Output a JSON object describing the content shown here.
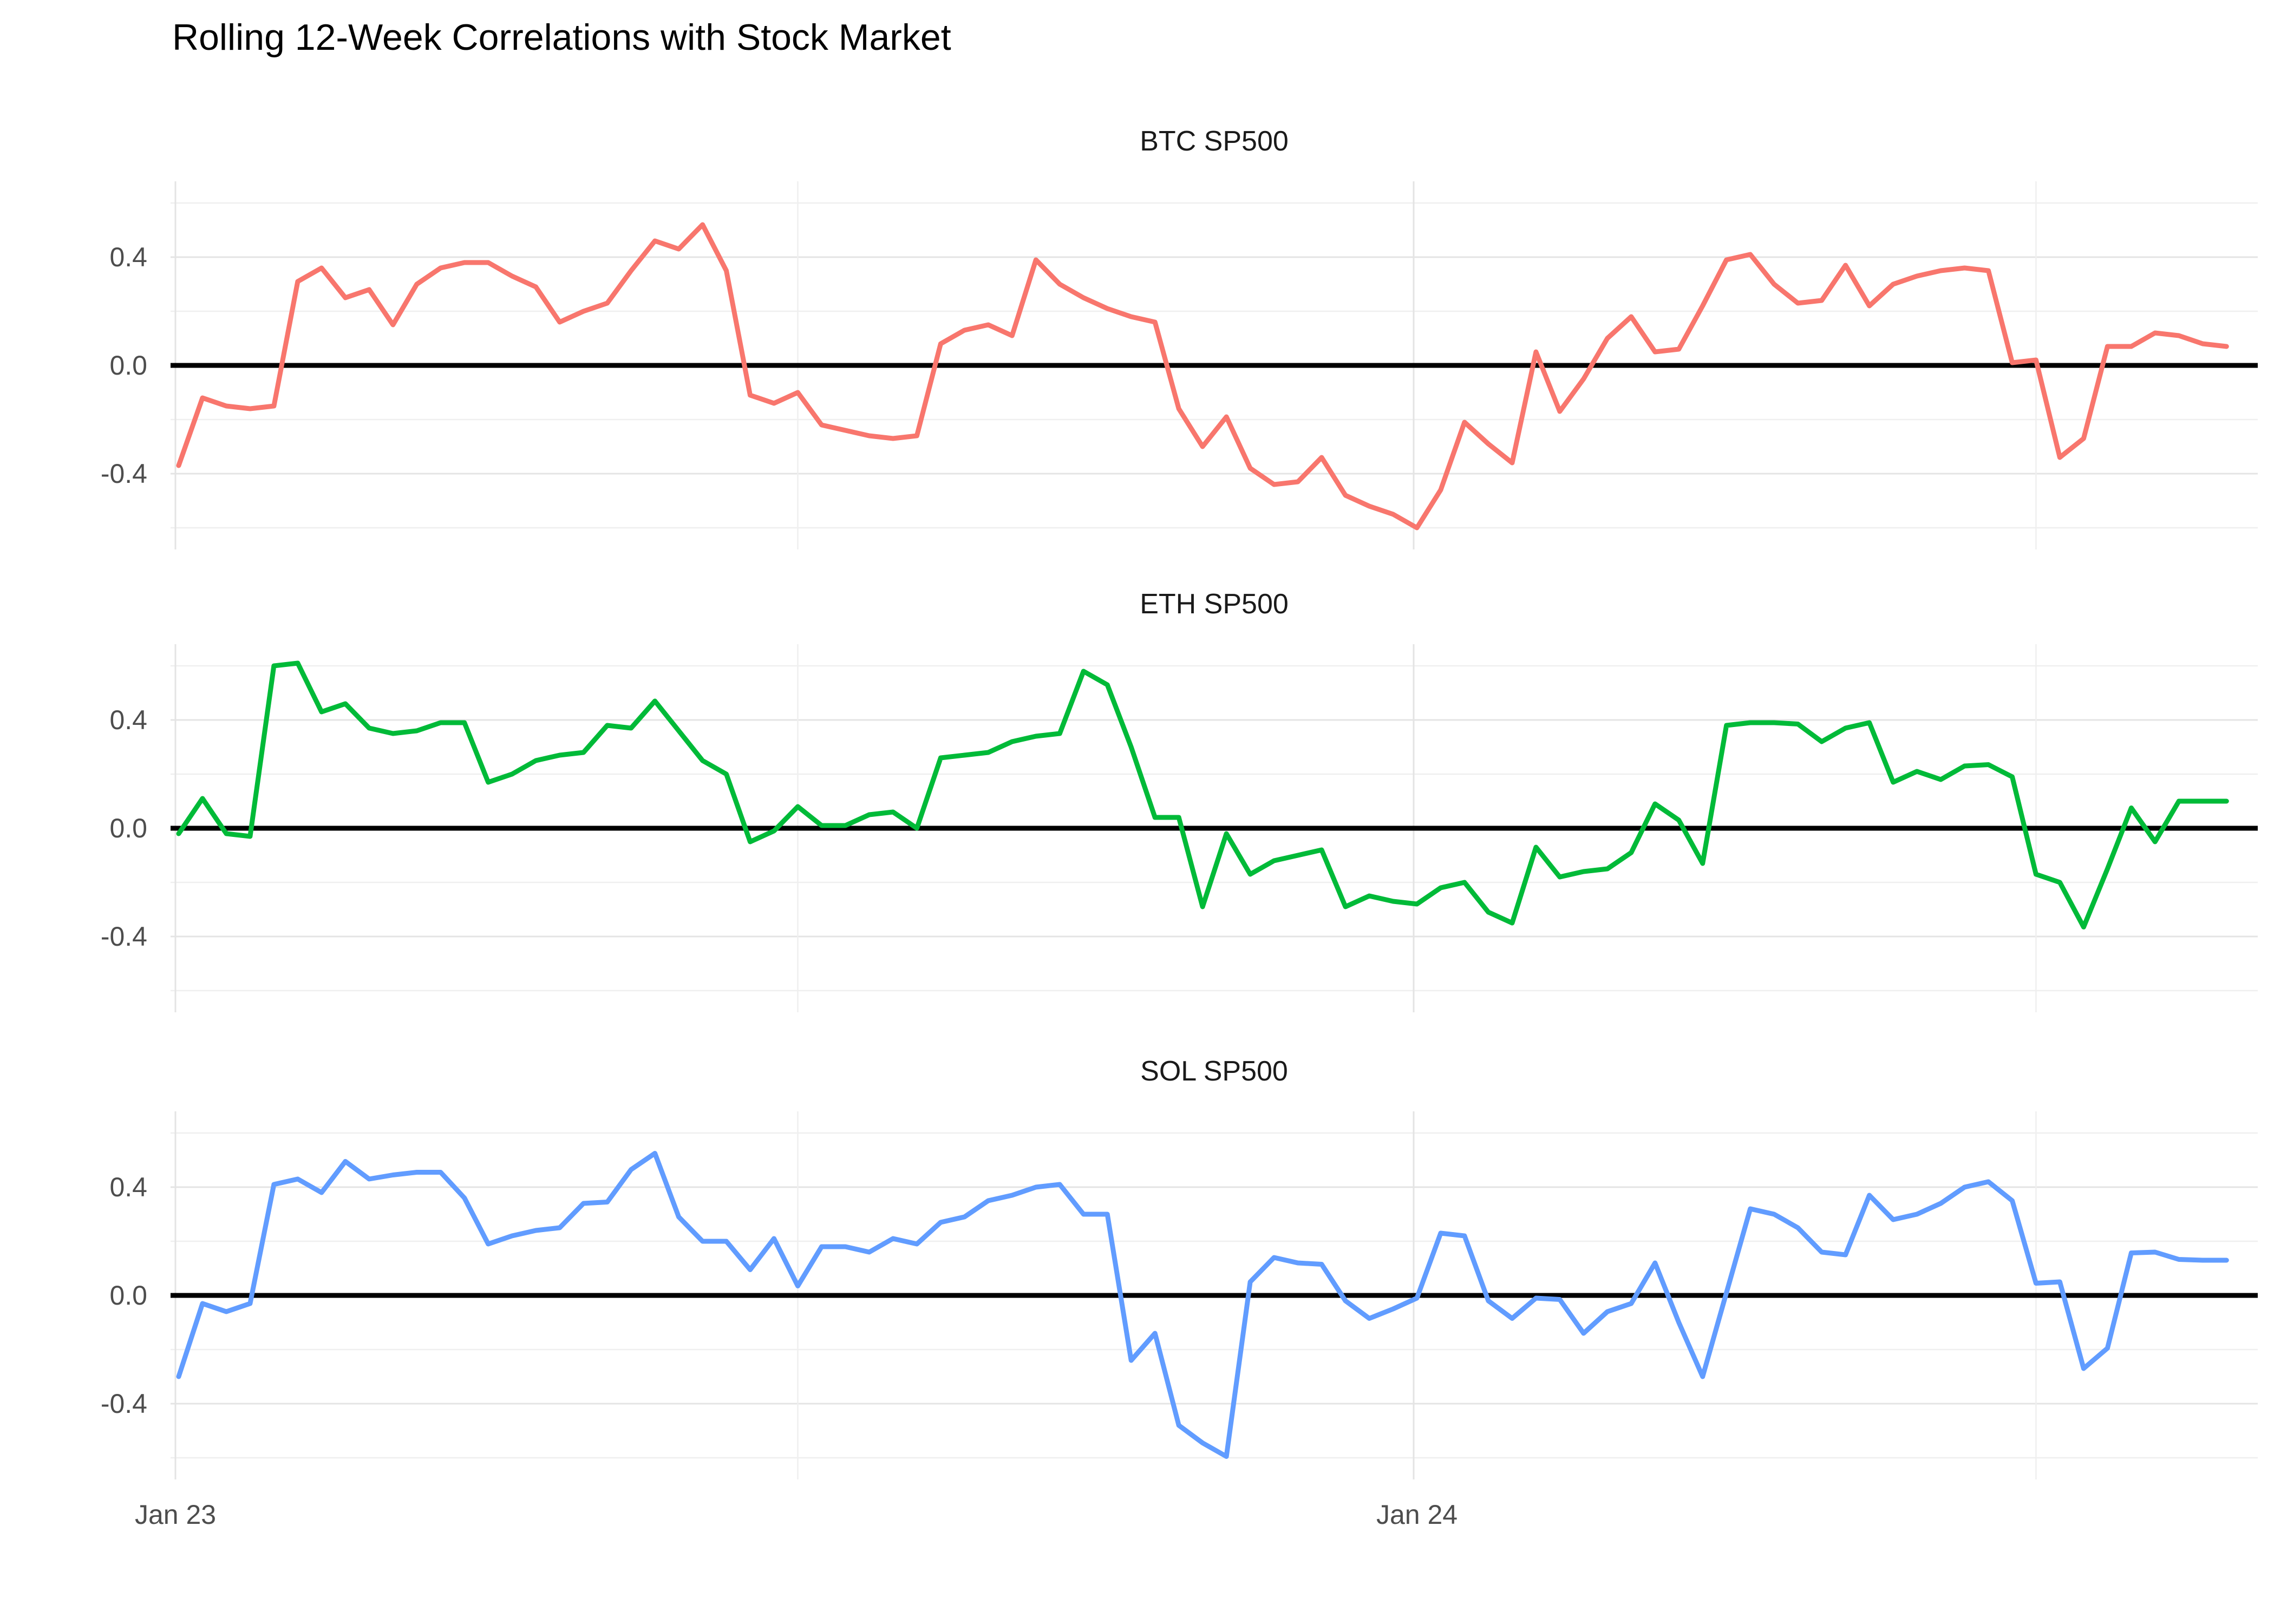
{
  "title": "Rolling 12-Week Correlations with Stock Market",
  "axes": {
    "x_tick_labels": [
      "Jan 23",
      "Jan 24"
    ],
    "x_tick_weeks": [
      0,
      52
    ],
    "x_minor_weeks": [
      26,
      78
    ],
    "y_tick_labels": [
      "0.4",
      "0.0",
      "-0.4"
    ],
    "y_tick_values": [
      0.4,
      0.0,
      -0.4
    ],
    "y_minor_values": [
      0.6,
      0.2,
      -0.2,
      -0.6
    ]
  },
  "colors": {
    "background": "#FFFFFF",
    "title_text": "#000000",
    "facet_title_text": "#1A1A1A",
    "axis_text": "#4D4D4D",
    "grid_major": "#E4E4E4",
    "grid_minor": "#EFEFEF",
    "zero_line": "#000000",
    "btc_line": "#F8766D",
    "eth_line": "#00BA38",
    "sol_line": "#619CFF"
  },
  "chart_data": {
    "type": "line",
    "title": "Rolling 12-Week Correlations with Stock Market",
    "x_unit": "weekly (rolling 12-week correlation)",
    "x_axis_tick_labels": [
      "Jan 23",
      "Jan 24"
    ],
    "ylim": [
      -0.68,
      0.68
    ],
    "y_gridlines_major": [
      0.4,
      0.0,
      -0.4
    ],
    "y_gridlines_minor": [
      0.6,
      0.2,
      -0.2,
      -0.6
    ],
    "zero_reference_line": 0.0,
    "legend_position": "none",
    "grid": true,
    "points_per_series": 87,
    "facets": [
      {
        "id": "btc",
        "title": "BTC SP500",
        "color": "#F8766D",
        "values": [
          -0.37,
          -0.12,
          -0.15,
          -0.16,
          -0.15,
          0.31,
          0.36,
          0.25,
          0.28,
          0.15,
          0.3,
          0.36,
          0.38,
          0.38,
          0.33,
          0.29,
          0.16,
          0.2,
          0.23,
          0.35,
          0.46,
          0.43,
          0.52,
          0.35,
          -0.11,
          -0.14,
          -0.1,
          -0.22,
          -0.24,
          -0.26,
          -0.27,
          -0.26,
          0.08,
          0.13,
          0.15,
          0.11,
          0.39,
          0.3,
          0.25,
          0.21,
          0.18,
          0.16,
          -0.16,
          -0.3,
          -0.19,
          -0.38,
          -0.44,
          -0.43,
          -0.34,
          -0.48,
          -0.52,
          -0.55,
          -0.6,
          -0.46,
          -0.21,
          -0.29,
          -0.36,
          0.05,
          -0.17,
          -0.05,
          0.1,
          0.18,
          0.05,
          0.06,
          0.22,
          0.39,
          0.41,
          0.3,
          0.23,
          0.24,
          0.37,
          0.22,
          0.3,
          0.33,
          0.35,
          0.36,
          0.35,
          0.01,
          0.02,
          -0.34,
          -0.27,
          0.07,
          0.07,
          0.12,
          0.11,
          0.08,
          0.07
        ]
      },
      {
        "id": "eth",
        "title": "ETH SP500",
        "color": "#00BA38",
        "values": [
          -0.02,
          0.11,
          -0.02,
          -0.03,
          0.6,
          0.61,
          0.43,
          0.46,
          0.37,
          0.35,
          0.36,
          0.39,
          0.39,
          0.17,
          0.2,
          0.25,
          0.27,
          0.28,
          0.38,
          0.37,
          0.47,
          0.36,
          0.25,
          0.2,
          -0.05,
          -0.01,
          0.08,
          0.01,
          0.01,
          0.05,
          0.06,
          0.0,
          0.26,
          0.27,
          0.28,
          0.32,
          0.34,
          0.35,
          0.58,
          0.53,
          0.3,
          0.04,
          0.04,
          -0.29,
          -0.02,
          -0.17,
          -0.12,
          -0.1,
          -0.08,
          -0.29,
          -0.25,
          -0.27,
          -0.28,
          -0.22,
          -0.2,
          -0.31,
          -0.35,
          -0.07,
          -0.18,
          -0.16,
          -0.15,
          -0.09,
          0.09,
          0.03,
          -0.13,
          0.38,
          0.39,
          0.39,
          0.385,
          0.32,
          0.37,
          0.39,
          0.17,
          0.21,
          0.18,
          0.23,
          0.235,
          0.19,
          -0.17,
          -0.2,
          -0.365,
          -0.15,
          0.075,
          -0.05,
          0.1,
          0.1,
          0.1
        ]
      },
      {
        "id": "sol",
        "title": "SOL SP500",
        "color": "#619CFF",
        "values": [
          -0.3,
          -0.03,
          -0.06,
          -0.03,
          0.41,
          0.43,
          0.38,
          0.495,
          0.43,
          0.445,
          0.455,
          0.455,
          0.36,
          0.19,
          0.22,
          0.24,
          0.25,
          0.34,
          0.345,
          0.465,
          0.525,
          0.29,
          0.2,
          0.2,
          0.095,
          0.21,
          0.035,
          0.18,
          0.18,
          0.16,
          0.21,
          0.19,
          0.27,
          0.29,
          0.35,
          0.37,
          0.4,
          0.41,
          0.3,
          0.3,
          -0.24,
          -0.14,
          -0.48,
          -0.545,
          -0.595,
          0.05,
          0.14,
          0.12,
          0.115,
          -0.02,
          -0.085,
          -0.05,
          -0.01,
          0.23,
          0.22,
          -0.02,
          -0.085,
          -0.01,
          -0.015,
          -0.14,
          -0.06,
          -0.03,
          0.12,
          -0.1,
          -0.3,
          0.01,
          0.32,
          0.3,
          0.25,
          0.16,
          0.15,
          0.37,
          0.28,
          0.3,
          0.34,
          0.4,
          0.42,
          0.35,
          0.045,
          0.05,
          -0.27,
          -0.195,
          0.157,
          0.16,
          0.133,
          0.13,
          0.13
        ]
      }
    ]
  }
}
